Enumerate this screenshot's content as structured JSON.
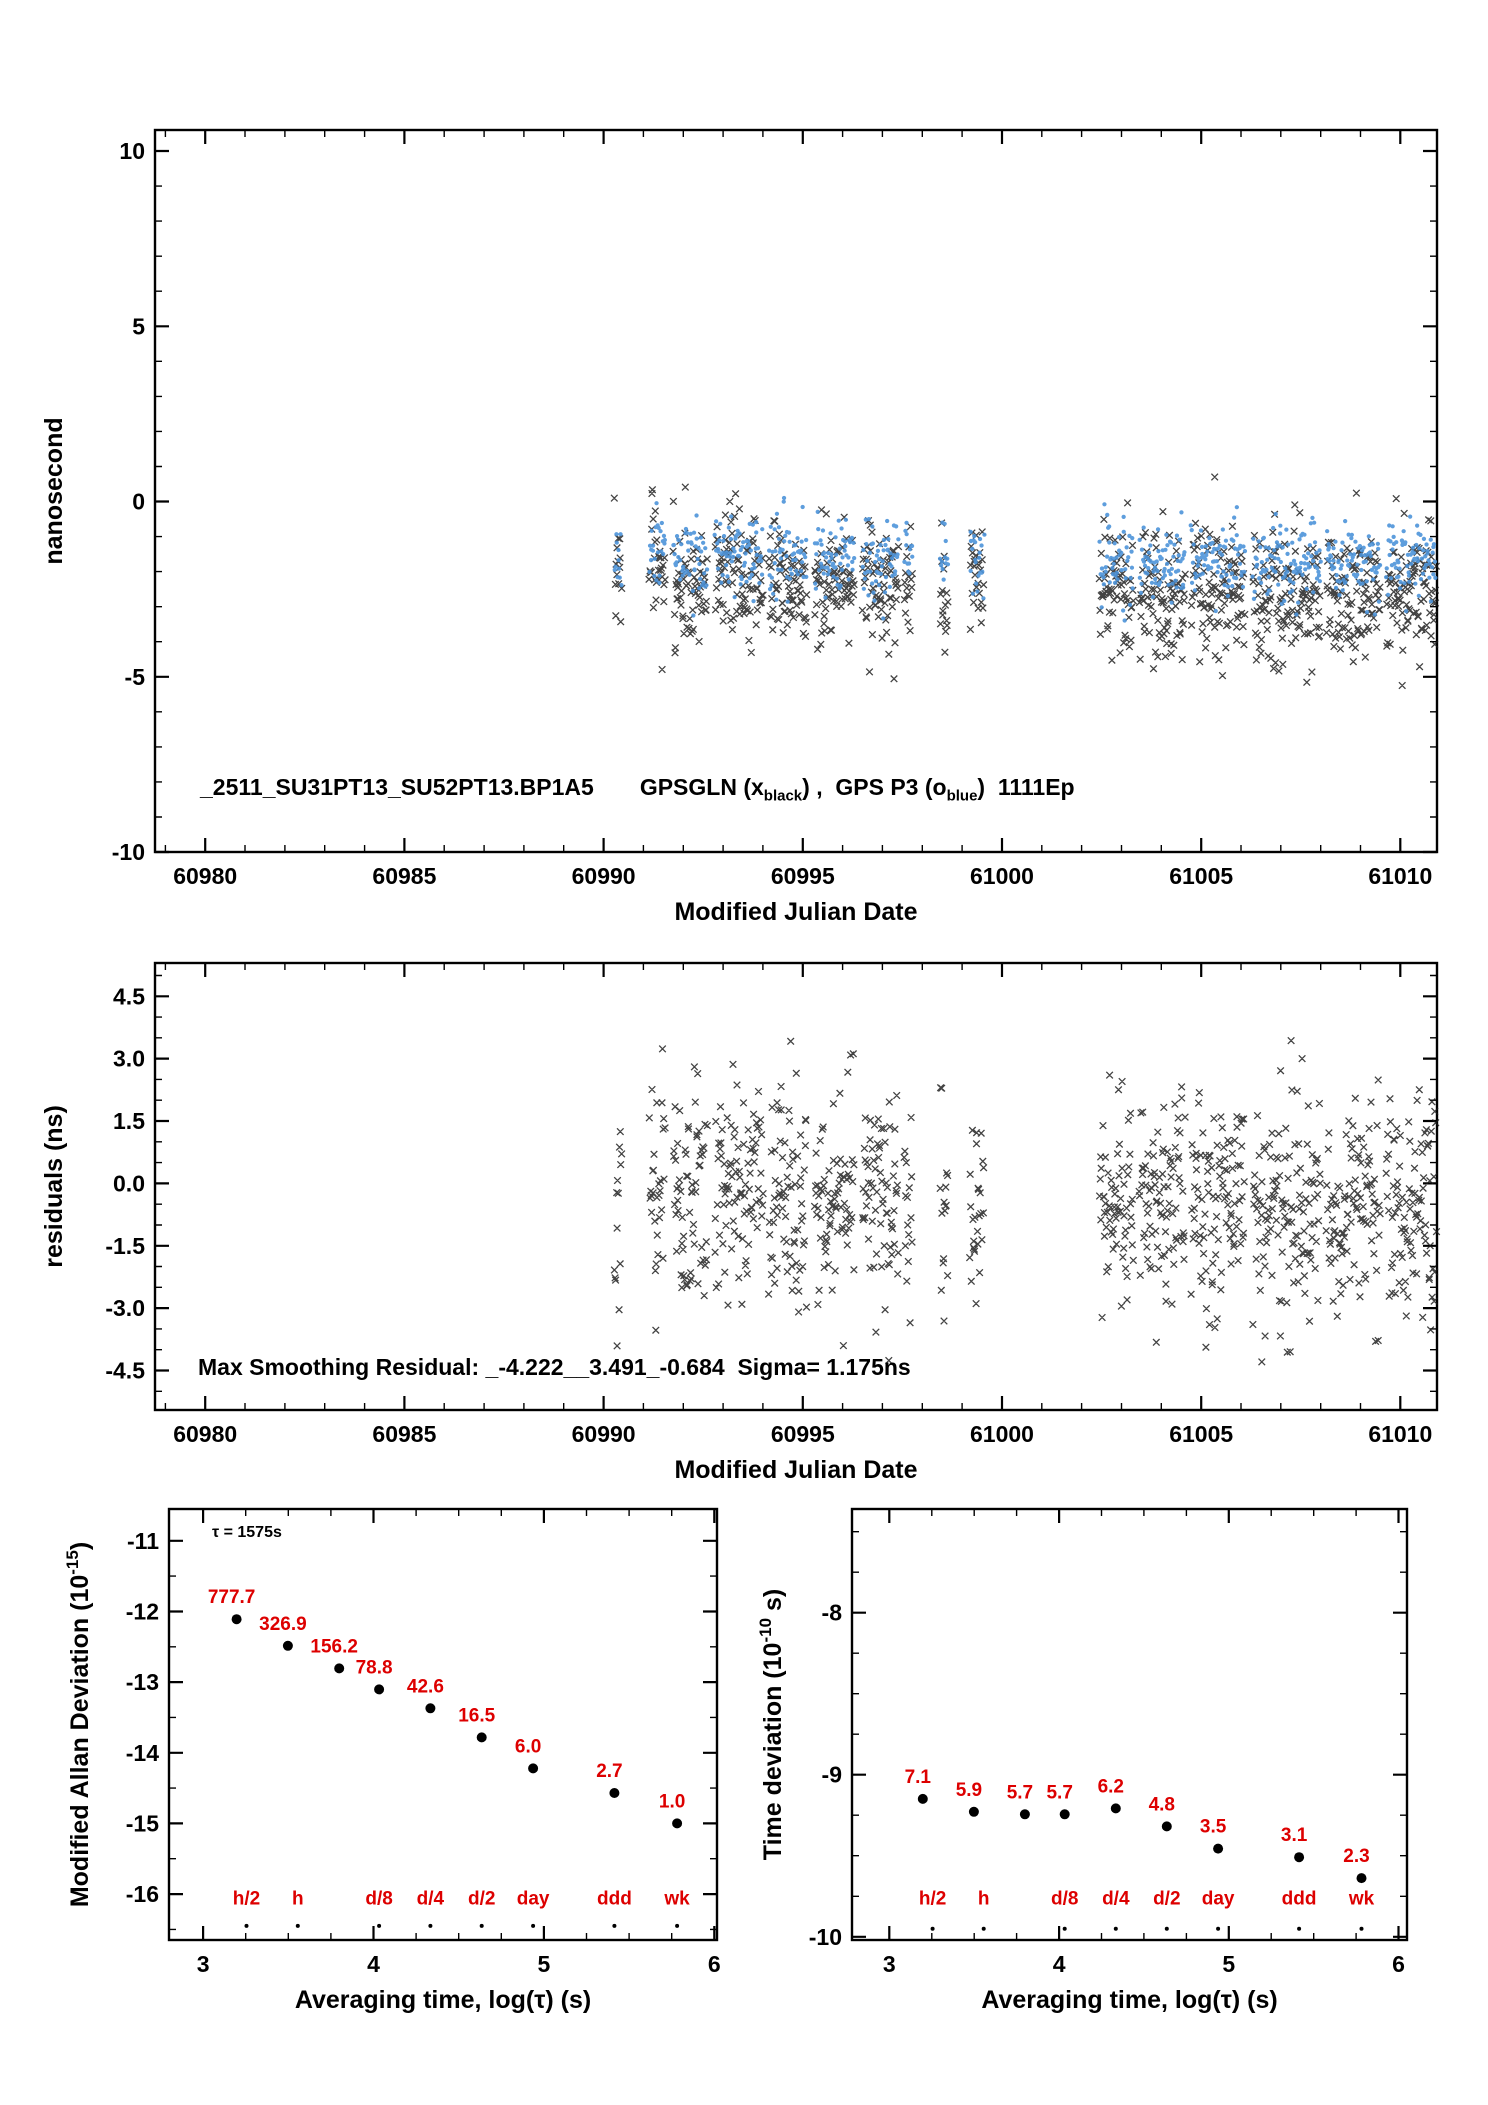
{
  "figure": {
    "background": "#ffffff"
  },
  "colors": {
    "foreground": "#000000",
    "series_black": "#1a1a1a",
    "series_blue": "#4d94d9",
    "label_red": "#dd0000"
  },
  "chart_data": [
    {
      "id": "phase-comparison",
      "type": "scatter",
      "annotation": {
        "file": "_2511_SU31PT13_SU52PT13.BP1A5",
        "series1_pre": "GPSGLN (x",
        "series1_sub": "black",
        "mid": ") ,  GPS P3 (o",
        "series2_sub": "blue",
        "tail": ")  1111Ep"
      },
      "axes": {
        "xlabel": "Modified Julian Date",
        "ylabel": "nanosecond",
        "xlim": [
          60978.74,
          61010.92
        ],
        "ylim": [
          -10,
          10.6
        ],
        "xticks": [
          60980,
          60985,
          60990,
          60995,
          61000,
          61005,
          61010
        ],
        "xtick_labels": [
          "60980",
          "60985",
          "60990",
          "60995",
          "61000",
          "61005",
          "61010"
        ],
        "yticks": [
          10,
          5,
          0,
          -5,
          -10
        ],
        "ytick_labels": [
          "10",
          "5",
          "0",
          "-5",
          "-10"
        ],
        "x_minor": 1,
        "y_minor": 1
      },
      "segments": [
        [
          60990.28,
          60990.45,
          0.3
        ],
        [
          60991.15,
          60991.55,
          0.5
        ],
        [
          60991.75,
          60992.6,
          0.0
        ],
        [
          60992.8,
          60994.0,
          0.2
        ],
        [
          60994.15,
          60995.1,
          0.0
        ],
        [
          60995.3,
          60996.3,
          -0.1
        ],
        [
          60996.5,
          60997.4,
          0.0
        ],
        [
          60997.55,
          60997.75,
          0.1
        ],
        [
          60998.45,
          60998.65,
          0.0
        ],
        [
          60999.2,
          60999.55,
          0.1
        ],
        [
          61002.45,
          61003.3,
          -0.1
        ],
        [
          61003.45,
          61004.6,
          -0.3
        ],
        [
          61004.75,
          61006.1,
          -0.2
        ],
        [
          61006.3,
          61008.0,
          -0.35
        ],
        [
          61008.15,
          61009.5,
          -0.3
        ],
        [
          61009.65,
          61010.9,
          -0.25
        ]
      ],
      "series": [
        {
          "name": "GPSGLN",
          "marker": "x",
          "color": "#1a1a1a",
          "y_mean": -2.35,
          "y_sd": 0.92,
          "y_clip": [
            -5.35,
            1.0
          ],
          "x_step": 0.013,
          "seed": 7,
          "dy_scale": 1
        },
        {
          "name": "GPS P3",
          "marker": "o",
          "color": "#4d94d9",
          "y_mean": -1.62,
          "y_sd": 0.55,
          "y_clip": [
            -3.4,
            1.3
          ],
          "x_step": 0.0165,
          "seed": 11,
          "dy_scale": 0.5
        }
      ]
    },
    {
      "id": "residuals",
      "type": "scatter",
      "annotation": "Max Smoothing Residual: _-4.222__3.491_-0.684  Sigma= 1.175ns",
      "axes": {
        "xlabel": "Modified Julian Date",
        "ylabel": "residuals (ns)",
        "xlim": [
          60978.74,
          61010.92
        ],
        "ylim": [
          -5.45,
          5.3
        ],
        "xticks": [
          60980,
          60985,
          60990,
          60995,
          61000,
          61005,
          61010
        ],
        "xtick_labels": [
          "60980",
          "60985",
          "60990",
          "60995",
          "61000",
          "61005",
          "61010"
        ],
        "yticks": [
          4.5,
          3.0,
          1.5,
          0.0,
          -1.5,
          -3.0,
          -4.5
        ],
        "ytick_labels": [
          "4.5",
          "3.0",
          "1.5",
          "0.0",
          "-1.5",
          "-3.0",
          "-4.5"
        ],
        "x_minor": 1,
        "y_minor": 0.5
      },
      "segments": [
        [
          60990.28,
          60990.45,
          0.3
        ],
        [
          60991.15,
          60991.55,
          0.5
        ],
        [
          60991.75,
          60992.6,
          0.0
        ],
        [
          60992.8,
          60994.0,
          0.2
        ],
        [
          60994.15,
          60995.1,
          0.0
        ],
        [
          60995.3,
          60996.3,
          -0.1
        ],
        [
          60996.5,
          60997.4,
          0.0
        ],
        [
          60997.55,
          60997.75,
          0.1
        ],
        [
          60998.45,
          60998.65,
          0.0
        ],
        [
          60999.2,
          60999.55,
          0.1
        ],
        [
          61002.45,
          61003.3,
          -0.1
        ],
        [
          61003.45,
          61004.6,
          -0.3
        ],
        [
          61004.75,
          61006.1,
          -0.2
        ],
        [
          61006.3,
          61008.0,
          -0.35
        ],
        [
          61008.15,
          61009.5,
          -0.3
        ],
        [
          61009.65,
          61010.9,
          -0.25
        ]
      ],
      "series": [
        {
          "name": "smoothing residuals",
          "marker": "x",
          "color": "#1a1a1a",
          "y_mean": -0.35,
          "y_sd": 1.3,
          "y_clip": [
            -4.35,
            3.55
          ],
          "x_step": 0.013,
          "seed": 23,
          "dy_scale": 1
        }
      ]
    },
    {
      "id": "modified-allan-deviation",
      "type": "scatter",
      "tau_note": "τ = 1575s",
      "axes": {
        "xlabel": "Averaging time, log(τ) (s)",
        "ylabel_parts": {
          "pre": "Modified Allan Deviation (10",
          "sup": "-15",
          "post": ")"
        },
        "xlim": [
          2.8,
          6.016
        ],
        "ylim": [
          -16.65,
          -10.55
        ],
        "xticks": [
          3,
          4,
          5,
          6
        ],
        "xtick_labels": [
          "3",
          "4",
          "5",
          "6"
        ],
        "yticks": [
          -11,
          -12,
          -13,
          -14,
          -15,
          -16
        ],
        "ytick_labels": [
          "-11",
          "-12",
          "-13",
          "-14",
          "-15",
          "-16"
        ],
        "x_minor": 0.25,
        "y_minor": 0.5
      },
      "points": {
        "x": [
          3.197,
          3.498,
          3.799,
          4.033,
          4.334,
          4.635,
          4.937,
          5.414,
          5.782
        ],
        "y": [
          -12.109,
          -12.486,
          -12.806,
          -13.103,
          -13.371,
          -13.783,
          -14.222,
          -14.569,
          -15.0
        ],
        "labels": [
          "777.7",
          "326.9",
          "156.2",
          "78.8",
          "42.6",
          "16.5",
          "6.0",
          "2.7",
          "1.0"
        ]
      },
      "time_tags": [
        {
          "label": "h/2",
          "x": 3.255
        },
        {
          "label": "h",
          "x": 3.556
        },
        {
          "label": "d/8",
          "x": 4.033
        },
        {
          "label": "d/4",
          "x": 4.334
        },
        {
          "label": "d/2",
          "x": 4.635
        },
        {
          "label": "day",
          "x": 4.937
        },
        {
          "label": "ddd",
          "x": 5.414
        },
        {
          "label": "wk",
          "x": 5.782
        }
      ],
      "tags_y": -16.15,
      "dots_y": -16.45
    },
    {
      "id": "time-deviation",
      "type": "scatter",
      "axes": {
        "xlabel": "Averaging time, log(τ) (s)",
        "ylabel_parts": {
          "pre": "Time deviation (10",
          "sup": "-10",
          "post": " s)"
        },
        "xlim": [
          2.78,
          6.05
        ],
        "ylim": [
          -10.02,
          -7.36
        ],
        "xticks": [
          3,
          4,
          5,
          6
        ],
        "xtick_labels": [
          "3",
          "4",
          "5",
          "6"
        ],
        "yticks": [
          -8,
          -9,
          -10
        ],
        "ytick_labels": [
          "-8",
          "-9",
          "-10"
        ],
        "x_minor": 0.25,
        "y_minor": 0.25
      },
      "points": {
        "x": [
          3.197,
          3.498,
          3.799,
          4.033,
          4.334,
          4.635,
          4.937,
          5.414,
          5.782
        ],
        "y": [
          -9.149,
          -9.229,
          -9.244,
          -9.244,
          -9.208,
          -9.319,
          -9.456,
          -9.509,
          -9.638
        ],
        "labels": [
          "7.1",
          "5.9",
          "5.7",
          "5.7",
          "6.2",
          "4.8",
          "3.5",
          "3.1",
          "2.3"
        ]
      },
      "time_tags": [
        {
          "label": "h/2",
          "x": 3.255
        },
        {
          "label": "h",
          "x": 3.556
        },
        {
          "label": "d/8",
          "x": 4.033
        },
        {
          "label": "d/4",
          "x": 4.334
        },
        {
          "label": "d/2",
          "x": 4.635
        },
        {
          "label": "day",
          "x": 4.937
        },
        {
          "label": "ddd",
          "x": 5.414
        },
        {
          "label": "wk",
          "x": 5.782
        }
      ],
      "tags_y": -9.8,
      "dots_y": -9.95
    }
  ]
}
